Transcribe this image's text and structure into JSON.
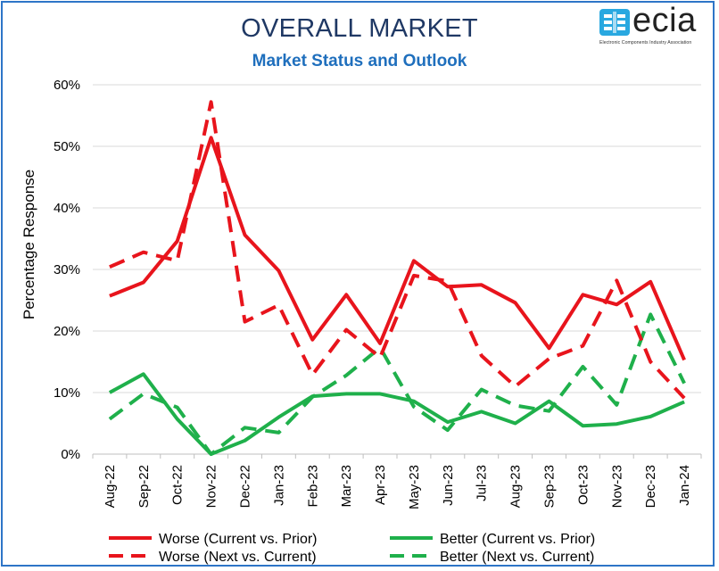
{
  "title": "OVERALL MARKET",
  "subtitle": "Market Status and Outlook",
  "logo": {
    "name": "ecia",
    "tagline": "Electronic Components Industry Association",
    "icon": "ecia-logo-icon",
    "color": "#29a8e0"
  },
  "chart_data": {
    "type": "line",
    "title": "OVERALL MARKET",
    "subtitle": "Market Status and Outlook",
    "xlabel": "",
    "ylabel": "Percentage Response",
    "ylim": [
      0,
      60
    ],
    "yticks": [
      0,
      10,
      20,
      30,
      40,
      50,
      60
    ],
    "ytick_labels": [
      "0%",
      "10%",
      "20%",
      "30%",
      "40%",
      "50%",
      "60%"
    ],
    "grid": "horizontal",
    "legend_position": "bottom",
    "categories": [
      "Aug-22",
      "Sep-22",
      "Oct-22",
      "Nov-22",
      "Dec-22",
      "Jan-23",
      "Feb-23",
      "Mar-23",
      "Apr-23",
      "May-23",
      "Jun-23",
      "Jul-23",
      "Aug-23",
      "Sep-23",
      "Oct-23",
      "Nov-23",
      "Dec-23",
      "Jan-24"
    ],
    "series": [
      {
        "name": "Worse (Current vs. Prior)",
        "color": "#e8141c",
        "dash": "solid",
        "values": [
          25.7,
          27.9,
          34.6,
          51.4,
          35.6,
          29.8,
          18.6,
          25.9,
          18.0,
          31.4,
          27.2,
          27.5,
          24.6,
          17.2,
          25.9,
          24.3,
          28.0,
          15.3
        ]
      },
      {
        "name": "Better (Current vs. Prior)",
        "color": "#1fb04b",
        "dash": "solid",
        "values": [
          10.0,
          13.0,
          5.7,
          0.0,
          2.2,
          6.0,
          9.4,
          9.8,
          9.8,
          8.6,
          5.2,
          6.9,
          5.0,
          8.6,
          4.6,
          4.9,
          6.1,
          8.5
        ]
      },
      {
        "name": "Worse (Next vs. Current)",
        "color": "#e8141c",
        "dash": "dashed",
        "values": [
          30.4,
          32.8,
          31.4,
          57.2,
          21.5,
          24.2,
          12.9,
          20.2,
          15.7,
          29.0,
          28.1,
          16.0,
          11.0,
          15.5,
          17.6,
          28.2,
          15.0,
          9.1
        ]
      },
      {
        "name": "Better (Next vs. Current)",
        "color": "#1fb04b",
        "dash": "dashed",
        "values": [
          5.7,
          9.8,
          7.6,
          0.0,
          4.3,
          3.5,
          9.3,
          12.8,
          17.3,
          7.7,
          3.9,
          10.5,
          7.9,
          7.0,
          14.2,
          8.0,
          22.7,
          11.5
        ]
      }
    ]
  },
  "legend_items": [
    "Worse (Current vs. Prior)",
    "Better (Current vs. Prior)",
    "Worse (Next vs. Current)",
    "Better (Next vs. Current)"
  ]
}
